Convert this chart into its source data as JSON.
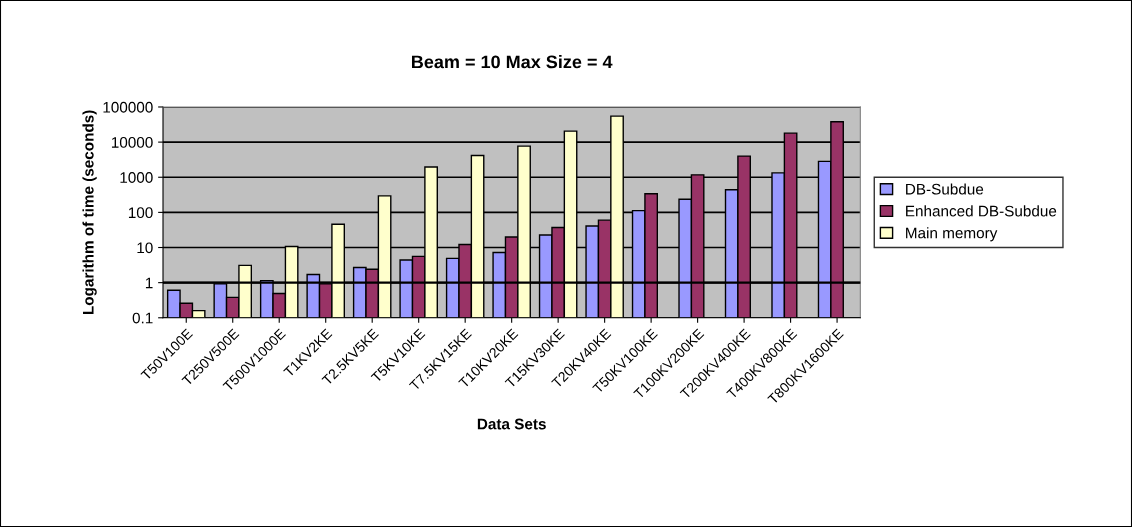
{
  "chart_data": {
    "type": "bar",
    "title": "Beam = 10 Max Size = 4",
    "xlabel": "Data Sets",
    "ylabel": "Logarithm of time (seconds)",
    "categories": [
      "T50V100E",
      "T250V500E",
      "T500V1000E",
      "T1KV2KE",
      "T2.5KV5KE",
      "T5KV10KE",
      "T7.5KV15KE",
      "T10KV20KE",
      "T15KV30KE",
      "T20KV40KE",
      "T50KV100KE",
      "T100KV200KE",
      "T200KV400KE",
      "T400KV800KE",
      "T800KV1600KE"
    ],
    "series": [
      {
        "name": "DB-Subdue",
        "color": "#9999ff",
        "values": [
          0.61,
          0.92,
          1.14,
          1.7,
          2.7,
          4.4,
          4.9,
          7.2,
          22.7,
          41,
          112,
          237,
          440,
          1330,
          2830
        ]
      },
      {
        "name": "Enhanced DB-Subdue",
        "color": "#993366",
        "values": [
          0.26,
          0.38,
          0.49,
          0.92,
          2.4,
          5.6,
          12.2,
          20,
          37,
          60,
          340,
          1170,
          4000,
          18000,
          38000
        ]
      },
      {
        "name": "Main memory",
        "color": "#ffffcc",
        "values": [
          0.16,
          3.1,
          10.7,
          46,
          295,
          1950,
          4150,
          7700,
          20500,
          55000,
          null,
          null,
          null,
          null,
          null
        ]
      }
    ],
    "ref_lines": [
      {
        "axis": "y",
        "value": 1,
        "color": "#000000"
      }
    ],
    "log": true,
    "ylim": [
      0.1,
      100000
    ],
    "yticks": [
      0.1,
      1,
      10,
      100,
      1000,
      10000,
      100000
    ],
    "grid": "y",
    "legend": "right"
  }
}
